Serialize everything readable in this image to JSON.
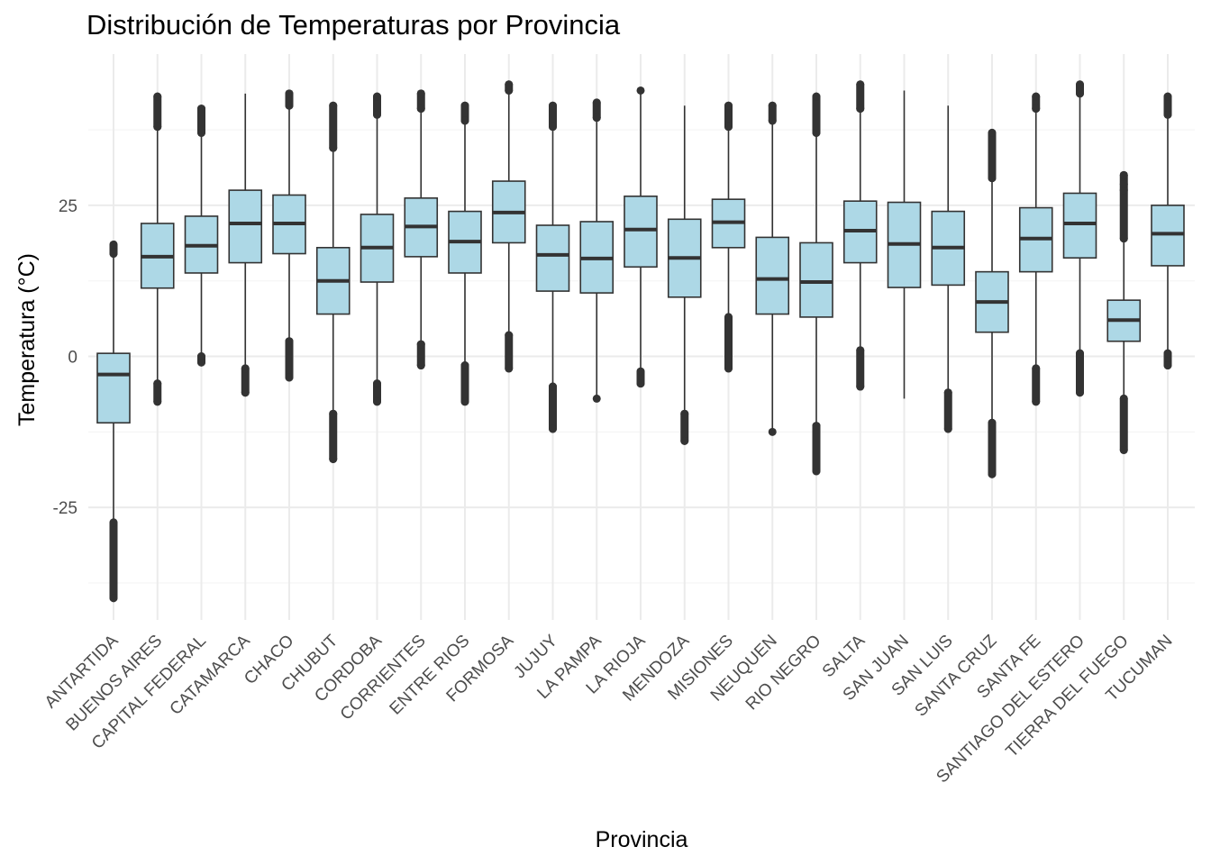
{
  "chart_data": {
    "type": "boxplot",
    "title": "Distribución de Temperaturas por Provincia",
    "xlabel": "Provincia",
    "ylabel": "Temperatura (°C)",
    "ylim": [
      -41.5,
      50
    ],
    "yticks": [
      -25,
      0,
      25
    ],
    "grid": true,
    "legend": "none",
    "colors": {
      "box_fill": "#add8e6",
      "line": "#333333",
      "grid": "#ebebeb"
    },
    "categories": [
      "ANTARTIDA",
      "BUENOS AIRES",
      "CAPITAL FEDERAL",
      "CATAMARCA",
      "CHACO",
      "CHUBUT",
      "CORDOBA",
      "CORRIENTES",
      "ENTRE RIOS",
      "FORMOSA",
      "JUJUY",
      "LA PAMPA",
      "LA RIOJA",
      "MENDOZA",
      "MISIONES",
      "NEUQUEN",
      "RIO NEGRO",
      "SALTA",
      "SAN JUAN",
      "SAN LUIS",
      "SANTA CRUZ",
      "SANTA FE",
      "SANTIAGO DEL ESTERO",
      "TIERRA DEL FUEGO",
      "TUCUMAN"
    ],
    "boxes": [
      {
        "name": "ANTARTIDA",
        "whisker_low": -27.5,
        "q1": -11,
        "median": -3,
        "q3": 0.5,
        "whisker_high": 16.5,
        "outliers_low": [
          -40,
          -27.5
        ],
        "outliers_high": [
          17,
          18.5
        ]
      },
      {
        "name": "BUENOS AIRES",
        "whisker_low": -4.5,
        "q1": 11.3,
        "median": 16.5,
        "q3": 22,
        "whisker_high": 38,
        "outliers_low": [
          -7.5,
          -4.5
        ],
        "outliers_high": [
          38,
          43
        ]
      },
      {
        "name": "CAPITAL FEDERAL",
        "whisker_low": 0,
        "q1": 13.8,
        "median": 18.3,
        "q3": 23.2,
        "whisker_high": 37,
        "outliers_low": [
          -1,
          0
        ],
        "outliers_high": [
          37,
          41
        ]
      },
      {
        "name": "CATAMARCA",
        "whisker_low": -2,
        "q1": 15.5,
        "median": 22,
        "q3": 27.5,
        "whisker_high": 43.5,
        "outliers_low": [
          -6,
          -2
        ],
        "outliers_high": []
      },
      {
        "name": "CHACO",
        "whisker_low": 2.5,
        "q1": 17,
        "median": 22,
        "q3": 26.7,
        "whisker_high": 41.5,
        "outliers_low": [
          -3.5,
          2.5
        ],
        "outliers_high": [
          41.5,
          43.5
        ]
      },
      {
        "name": "CHUBUT",
        "whisker_low": -9.5,
        "q1": 7,
        "median": 12.5,
        "q3": 18,
        "whisker_high": 34.5,
        "outliers_low": [
          -17,
          -9.5
        ],
        "outliers_high": [
          34.5,
          41.5
        ]
      },
      {
        "name": "CORDOBA",
        "whisker_low": -4.5,
        "q1": 12.3,
        "median": 18,
        "q3": 23.5,
        "whisker_high": 40,
        "outliers_low": [
          -7.5,
          -4.5
        ],
        "outliers_high": [
          40,
          43
        ]
      },
      {
        "name": "CORRIENTES",
        "whisker_low": 2,
        "q1": 16.5,
        "median": 21.5,
        "q3": 26.2,
        "whisker_high": 41,
        "outliers_low": [
          -1.5,
          2
        ],
        "outliers_high": [
          41,
          43.5
        ]
      },
      {
        "name": "ENTRE RIOS",
        "whisker_low": -1.5,
        "q1": 13.8,
        "median": 19,
        "q3": 24,
        "whisker_high": 39,
        "outliers_low": [
          -7.5,
          -1.5
        ],
        "outliers_high": [
          39,
          41.5
        ]
      },
      {
        "name": "FORMOSA",
        "whisker_low": 3.5,
        "q1": 18.8,
        "median": 23.8,
        "q3": 29,
        "whisker_high": 44,
        "outliers_low": [
          -2,
          3.5
        ],
        "outliers_high": [
          44,
          45
        ]
      },
      {
        "name": "JUJUY",
        "whisker_low": -5,
        "q1": 10.8,
        "median": 16.8,
        "q3": 21.7,
        "whisker_high": 38,
        "outliers_low": [
          -12,
          -5
        ],
        "outliers_high": [
          38,
          41.5
        ]
      },
      {
        "name": "LA PAMPA",
        "whisker_low": -7,
        "q1": 10.5,
        "median": 16.2,
        "q3": 22.3,
        "whisker_high": 39.5,
        "outliers_low": [
          -7
        ],
        "outliers_high": [
          39.5,
          42
        ]
      },
      {
        "name": "LA RIOJA",
        "whisker_low": -2.5,
        "q1": 14.8,
        "median": 21,
        "q3": 26.5,
        "whisker_high": 43.5,
        "outliers_low": [
          -4.5,
          -2.5
        ],
        "outliers_high": [
          44
        ]
      },
      {
        "name": "MENDOZA",
        "whisker_low": -9.5,
        "q1": 9.8,
        "median": 16.3,
        "q3": 22.7,
        "whisker_high": 41.5,
        "outliers_low": [
          -14,
          -9.5
        ],
        "outliers_high": []
      },
      {
        "name": "MISIONES",
        "whisker_low": 6.5,
        "q1": 18,
        "median": 22.2,
        "q3": 26,
        "whisker_high": 38,
        "outliers_low": [
          -2,
          6.5
        ],
        "outliers_high": [
          38,
          41.5
        ]
      },
      {
        "name": "NEUQUEN",
        "whisker_low": -12.5,
        "q1": 7,
        "median": 12.8,
        "q3": 19.7,
        "whisker_high": 39,
        "outliers_low": [
          -12.5
        ],
        "outliers_high": [
          39,
          41.5
        ]
      },
      {
        "name": "RIO NEGRO",
        "whisker_low": -11.5,
        "q1": 6.5,
        "median": 12.3,
        "q3": 18.8,
        "whisker_high": 37,
        "outliers_low": [
          -19,
          -11.5
        ],
        "outliers_high": [
          37,
          43
        ]
      },
      {
        "name": "SALTA",
        "whisker_low": 1,
        "q1": 15.5,
        "median": 20.8,
        "q3": 25.7,
        "whisker_high": 41,
        "outliers_low": [
          -5,
          1
        ],
        "outliers_high": [
          41,
          45
        ]
      },
      {
        "name": "SAN JUAN",
        "whisker_low": -7,
        "q1": 11.4,
        "median": 18.6,
        "q3": 25.5,
        "whisker_high": 44,
        "outliers_low": [],
        "outliers_high": []
      },
      {
        "name": "SAN LUIS",
        "whisker_low": -6,
        "q1": 11.8,
        "median": 18,
        "q3": 24,
        "whisker_high": 41.5,
        "outliers_low": [
          -12,
          -6
        ],
        "outliers_high": []
      },
      {
        "name": "SANTA CRUZ",
        "whisker_low": -11,
        "q1": 4,
        "median": 9,
        "q3": 14,
        "whisker_high": 29.5,
        "outliers_low": [
          -19.5,
          -11
        ],
        "outliers_high": [
          29.5,
          37
        ]
      },
      {
        "name": "SANTA FE",
        "whisker_low": -2,
        "q1": 14,
        "median": 19.5,
        "q3": 24.6,
        "whisker_high": 41,
        "outliers_low": [
          -7.5,
          -2
        ],
        "outliers_high": [
          41,
          43
        ]
      },
      {
        "name": "SANTIAGO DEL ESTERO",
        "whisker_low": 0.5,
        "q1": 16.3,
        "median": 22,
        "q3": 27,
        "whisker_high": 43.5,
        "outliers_low": [
          -6,
          0.5
        ],
        "outliers_high": [
          43.5,
          45
        ]
      },
      {
        "name": "TIERRA DEL FUEGO",
        "whisker_low": -7,
        "q1": 2.5,
        "median": 6,
        "q3": 9.3,
        "whisker_high": 19.5,
        "outliers_low": [
          -15.5,
          -7
        ],
        "outliers_high": [
          19.5,
          27.5,
          28.5,
          30
        ]
      },
      {
        "name": "TUCUMAN",
        "whisker_low": 0.5,
        "q1": 15,
        "median": 20.3,
        "q3": 25,
        "whisker_high": 40,
        "outliers_low": [
          -1.5,
          0.5
        ],
        "outliers_high": [
          40,
          43
        ]
      }
    ]
  }
}
